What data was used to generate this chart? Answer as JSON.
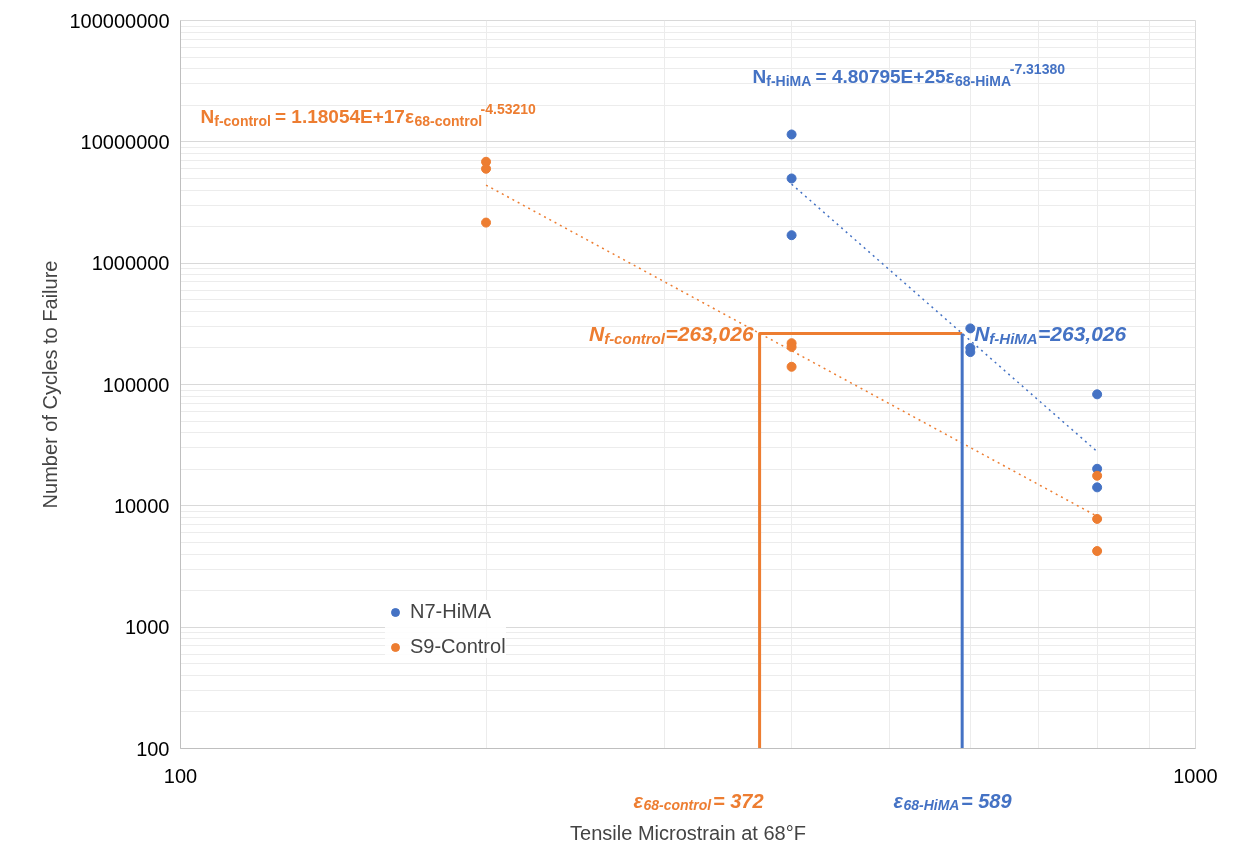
{
  "chart_data": {
    "type": "scatter",
    "xlabel": "Tensile Microstrain at 68°F",
    "ylabel": "Number of Cycles to Failure",
    "log": "xy",
    "xlim": [
      100,
      1000
    ],
    "xticks": [
      100,
      1000
    ],
    "ylim": [
      100,
      100000000
    ],
    "yticks": [
      100,
      1000,
      10000,
      100000,
      1000000,
      10000000,
      100000000
    ],
    "grid": true,
    "legend": "bottom left",
    "marker": "circle",
    "series": [
      {
        "name": "N7-HiMA",
        "color": "#4472c4",
        "x": [
          400,
          400,
          400,
          600,
          600,
          600,
          800,
          800,
          800
        ],
        "values": [
          11500000,
          4990000,
          1700000,
          290000,
          200000,
          185000,
          83000,
          20200,
          14200
        ]
      },
      {
        "name": "S9-Control",
        "color": "#ed7d31",
        "x": [
          200,
          200,
          200,
          400,
          400,
          400,
          800,
          800,
          800
        ],
        "values": [
          6850000,
          6000000,
          2160000,
          219000,
          204000,
          140000,
          17700,
          7800,
          4240
        ]
      },
      {
        "type": "line",
        "color": "#4472c4",
        "line_style": "dotted",
        "marker": "none",
        "x": [
          400,
          800
        ],
        "values": [
          4480000,
          28000
        ]
      },
      {
        "type": "line",
        "color": "#ed7d31",
        "line_style": "dotted",
        "marker": "none",
        "x": [
          200,
          800
        ],
        "values": [
          4400000,
          8200
        ]
      },
      {
        "type": "line",
        "color": "#ed7d31",
        "line_style": "solid",
        "marker": "none",
        "x": [
          372,
          372,
          589
        ],
        "values": [
          100,
          263026,
          263026
        ]
      },
      {
        "type": "line",
        "color": "#4472c4",
        "line_style": "solid",
        "marker": "none",
        "x": [
          589,
          589
        ],
        "values": [
          263026,
          100
        ]
      }
    ],
    "annotations": [
      "N$_{f-control}$ = 1.18054E+17ε$_{68-control}$$^{-4.53210}$",
      "N$_{f-HiMA}$ = 4.80795E+25ε$_{68-HiMA}$$^{-7.31380}$",
      {
        "text": "N$_{f-control}$=263,026",
        "x": 372,
        "y": 263026
      },
      {
        "text": "N$_{f-HiMA}$=263,026",
        "x": 589,
        "y": 263026
      },
      "ε$_{68-control}$= 372",
      "ε$_{68-HiMA}$= 589"
    ]
  }
}
